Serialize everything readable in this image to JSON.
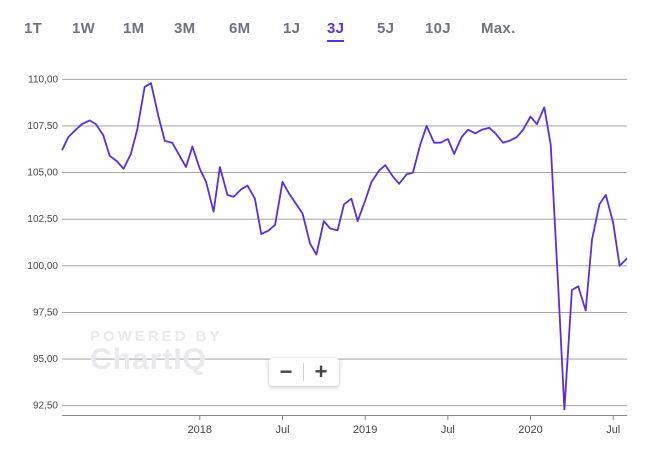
{
  "range_tabs": {
    "items": [
      {
        "label": "1T"
      },
      {
        "label": "1W"
      },
      {
        "label": "1M"
      },
      {
        "label": "3M"
      },
      {
        "label": "6M"
      },
      {
        "label": "1J"
      },
      {
        "label": "3J"
      },
      {
        "label": "5J"
      },
      {
        "label": "10J"
      },
      {
        "label": "Max."
      }
    ],
    "active_index": 6
  },
  "zoom": {
    "out_label": "−",
    "in_label": "+"
  },
  "watermark": {
    "line1": "POWERED BY",
    "line2": "ChartIQ"
  },
  "colors": {
    "accent": "#5c2fe0",
    "line": "#5a2ee0",
    "grid": "#999999",
    "text": "#444444"
  },
  "chart_data": {
    "type": "line",
    "grid": "horizontal",
    "xlim": [
      "2017-03",
      "2020-08"
    ],
    "ylim": [
      92.0,
      110.5
    ],
    "y_ticks": [
      "110,00",
      "107,50",
      "105,00",
      "102,50",
      "100,00",
      "97,50",
      "95,00",
      "92,50"
    ],
    "y_tick_values": [
      110.0,
      107.5,
      105.0,
      102.5,
      100.0,
      97.5,
      95.0,
      92.5
    ],
    "x_ticks": [
      {
        "label": "2018",
        "date": "2018-01"
      },
      {
        "label": "Jul",
        "date": "2018-07"
      },
      {
        "label": "2019",
        "date": "2019-01"
      },
      {
        "label": "Jul",
        "date": "2019-07"
      },
      {
        "label": "2020",
        "date": "2020-01"
      },
      {
        "label": "Jul",
        "date": "2020-07"
      }
    ],
    "x": [
      "2017-03",
      "2017-03-15",
      "2017-04",
      "2017-04-15",
      "2017-05",
      "2017-05-15",
      "2017-06",
      "2017-06-15",
      "2017-07",
      "2017-07-15",
      "2017-08",
      "2017-08-15",
      "2017-09",
      "2017-09-15",
      "2017-10",
      "2017-10-15",
      "2017-11",
      "2017-11-15",
      "2017-12",
      "2017-12-15",
      "2018-01",
      "2018-01-15",
      "2018-02",
      "2018-02-15",
      "2018-03",
      "2018-03-15",
      "2018-04",
      "2018-04-15",
      "2018-05",
      "2018-05-15",
      "2018-06",
      "2018-06-15",
      "2018-07",
      "2018-07-15",
      "2018-08",
      "2018-08-15",
      "2018-09",
      "2018-09-15",
      "2018-10",
      "2018-10-15",
      "2018-11",
      "2018-11-15",
      "2018-12",
      "2018-12-15",
      "2019-01",
      "2019-01-15",
      "2019-02",
      "2019-02-15",
      "2019-03",
      "2019-03-15",
      "2019-04",
      "2019-04-15",
      "2019-05",
      "2019-05-15",
      "2019-06",
      "2019-06-15",
      "2019-07",
      "2019-07-15",
      "2019-08",
      "2019-08-15",
      "2019-09",
      "2019-09-15",
      "2019-10",
      "2019-10-15",
      "2019-11",
      "2019-11-15",
      "2019-12",
      "2019-12-15",
      "2020-01",
      "2020-01-15",
      "2020-02",
      "2020-02-15",
      "2020-03",
      "2020-03-15",
      "2020-04",
      "2020-04-15",
      "2020-05",
      "2020-05-15",
      "2020-06",
      "2020-06-15",
      "2020-07",
      "2020-07-15",
      "2020-08"
    ],
    "series": [
      {
        "values": [
          106.2,
          106.9,
          107.3,
          107.6,
          107.8,
          107.6,
          107.0,
          105.9,
          105.6,
          105.2,
          106.0,
          107.3,
          109.6,
          109.8,
          108.0,
          106.7,
          106.6,
          106.0,
          105.3,
          106.4,
          105.2,
          104.5,
          102.9,
          105.3,
          103.8,
          103.7,
          104.1,
          104.3,
          103.6,
          101.7,
          101.9,
          102.2,
          104.5,
          103.9,
          103.3,
          102.8,
          101.2,
          100.6,
          102.4,
          102.0,
          101.9,
          103.3,
          103.6,
          102.4,
          103.5,
          104.5,
          105.1,
          105.4,
          104.8,
          104.4,
          104.9,
          105.0,
          106.5,
          107.5,
          106.6,
          106.6,
          106.8,
          106.0,
          106.9,
          107.3,
          107.1,
          107.3,
          107.4,
          107.1,
          106.6,
          106.7,
          106.9,
          107.3,
          108.0,
          107.6,
          108.5,
          106.5,
          99.0,
          92.3,
          98.7,
          98.9,
          97.6,
          101.4,
          103.3,
          103.8,
          102.3,
          100.0,
          100.4
        ]
      }
    ]
  }
}
